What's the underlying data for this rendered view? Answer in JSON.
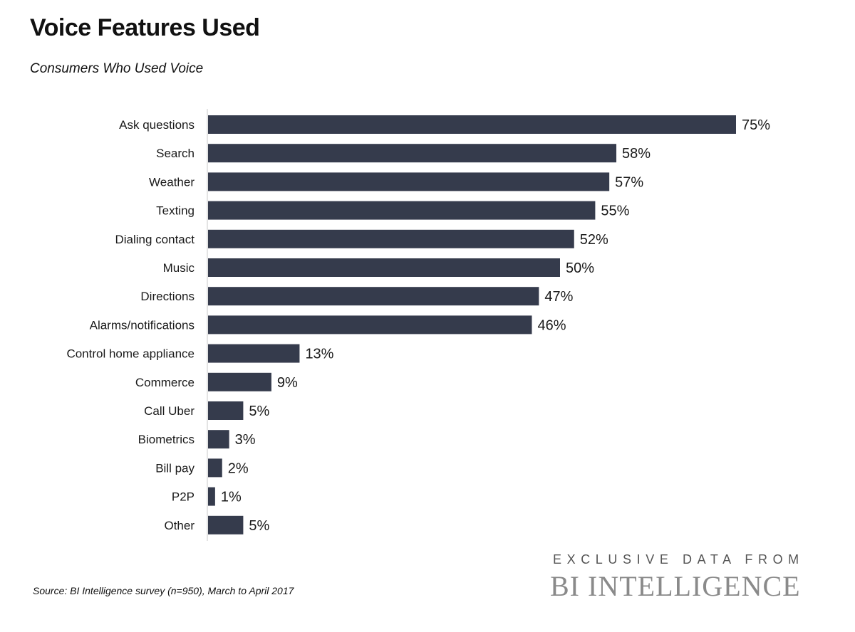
{
  "header": {
    "title": "Voice Features Used",
    "subtitle": "Consumers Who Used Voice"
  },
  "chart_data": {
    "type": "bar",
    "orientation": "horizontal",
    "categories": [
      "Ask questions",
      "Search",
      "Weather",
      "Texting",
      "Dialing contact",
      "Music",
      "Directions",
      "Alarms/notifications",
      "Control home appliance",
      "Commerce",
      "Call Uber",
      "Biometrics",
      "Bill pay",
      "P2P",
      "Other"
    ],
    "values": [
      75,
      58,
      57,
      55,
      52,
      50,
      47,
      46,
      13,
      9,
      5,
      3,
      2,
      1,
      5
    ],
    "value_labels": [
      "75%",
      "58%",
      "57%",
      "55%",
      "52%",
      "50%",
      "47%",
      "46%",
      "13%",
      "9%",
      "5%",
      "3%",
      "2%",
      "1%",
      "5%"
    ],
    "xlim": [
      0,
      75
    ],
    "bar_color": "#353b4c",
    "grid": false,
    "legend": "none"
  },
  "footer": {
    "source": "Source: BI Intelligence survey (n=950), March to April 2017",
    "brand_tagline": "EXCLUSIVE DATA FROM",
    "brand_name": "BI INTELLIGENCE"
  }
}
